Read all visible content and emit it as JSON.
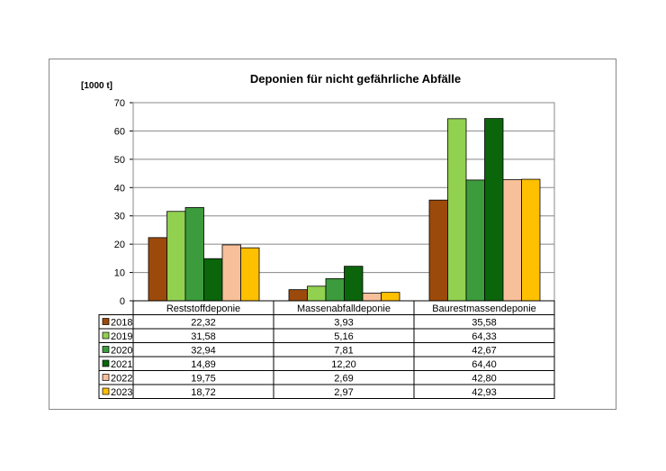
{
  "chart_data": {
    "type": "bar",
    "title": "Deponien für nicht gefährliche Abfälle",
    "ylabel": "[1000 t]",
    "ylim": [
      0,
      70
    ],
    "yticks": [
      0,
      10,
      20,
      30,
      40,
      50,
      60,
      70
    ],
    "grid": true,
    "legend": "data-table",
    "categories": [
      "Reststoffdeponie",
      "Massenabfalldeponie",
      "Baurestmassendeponie"
    ],
    "series": [
      {
        "name": "2018",
        "color": "#9c4a0c",
        "values": [
          22.32,
          3.93,
          35.58
        ],
        "labels": [
          "22,32",
          "3,93",
          "35,58"
        ]
      },
      {
        "name": "2019",
        "color": "#92d050",
        "values": [
          31.58,
          5.16,
          64.33
        ],
        "labels": [
          "31,58",
          "5,16",
          "64,33"
        ]
      },
      {
        "name": "2020",
        "color": "#3c9b3c",
        "values": [
          32.94,
          7.81,
          42.67
        ],
        "labels": [
          "32,94",
          "7,81",
          "42,67"
        ]
      },
      {
        "name": "2021",
        "color": "#0b650b",
        "values": [
          14.89,
          12.2,
          64.4
        ],
        "labels": [
          "14,89",
          "12,20",
          "64,40"
        ]
      },
      {
        "name": "2022",
        "color": "#f8c09a",
        "values": [
          19.75,
          2.69,
          42.8
        ],
        "labels": [
          "19,75",
          "2,69",
          "42,80"
        ]
      },
      {
        "name": "2023",
        "color": "#ffc000",
        "values": [
          18.72,
          2.97,
          42.93
        ],
        "labels": [
          "18,72",
          "2,97",
          "42,93"
        ]
      }
    ]
  }
}
